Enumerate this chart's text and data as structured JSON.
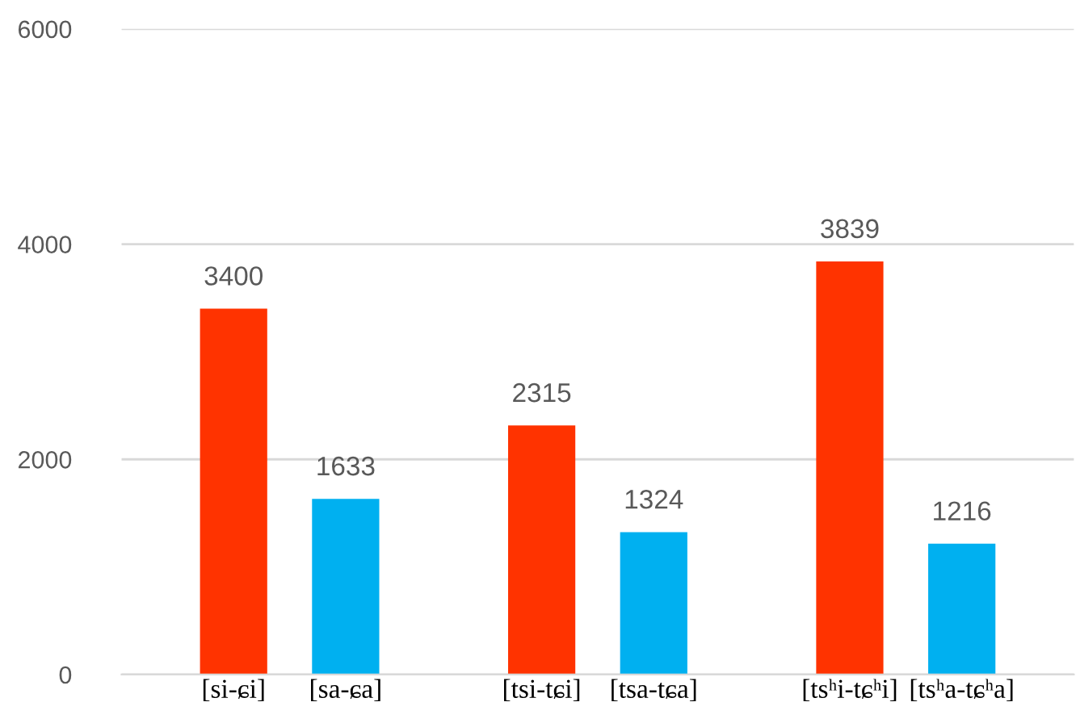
{
  "chart_data": {
    "type": "bar",
    "categories": [
      "[si-ɕi]",
      "[sa-ɕa]",
      "[tsi-tɕi]",
      "[tsa-tɕa]",
      "[tsʰi-tɕʰi]",
      "[tsʰa-tɕʰa]"
    ],
    "values": [
      3400,
      1633,
      2315,
      1324,
      3839,
      1216
    ],
    "colors": [
      "#ff3300",
      "#00b0f0",
      "#ff3300",
      "#00b0f0",
      "#ff3300",
      "#00b0f0"
    ],
    "ylim": [
      0,
      6000
    ],
    "yticks": [
      0,
      2000,
      4000,
      6000
    ],
    "grid": "y",
    "data_labels": true
  }
}
